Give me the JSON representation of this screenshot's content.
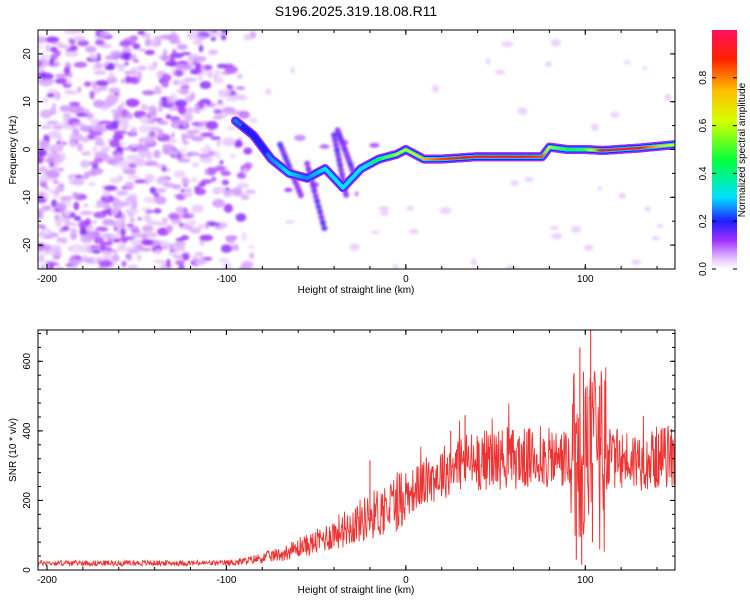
{
  "title": "S196.2025.319.18.08.R11",
  "chart_data": [
    {
      "type": "heatmap",
      "xlabel": "Height of straight line (km)",
      "ylabel": "Frequency (Hz)",
      "xlim": [
        -205,
        150
      ],
      "ylim": [
        -25,
        25
      ],
      "xticks": [
        -200,
        -100,
        0,
        100
      ],
      "xtick_labels": [
        "-200",
        "-100",
        "0",
        "100"
      ],
      "yticks": [
        -20,
        -10,
        0,
        10,
        20
      ],
      "ytick_labels": [
        "-20",
        "-10",
        "0",
        "10",
        "20"
      ],
      "colorbar": {
        "label": "Normalized spectral amplitude",
        "range": [
          0,
          1
        ],
        "ticks": [
          0,
          0.2,
          0.4,
          0.6,
          0.8
        ],
        "tick_labels": [
          "0.0",
          "0.2",
          "0.4",
          "0.6",
          "0.8"
        ]
      },
      "ridge": {
        "x": [
          -95,
          -85,
          -75,
          -65,
          -55,
          -45,
          -35,
          -25,
          -15,
          -5,
          0,
          5,
          10,
          20,
          40,
          60,
          76,
          80,
          90,
          100,
          110,
          130,
          150
        ],
        "y": [
          6,
          3,
          -2,
          -5,
          -6,
          -4,
          -8,
          -4,
          -2,
          -1,
          0,
          -1,
          -2,
          -2,
          -1.5,
          -1.5,
          -1.5,
          0.5,
          0,
          0,
          -0.2,
          0.3,
          1
        ],
        "amplitude": [
          0.25,
          0.2,
          0.25,
          0.3,
          0.25,
          0.3,
          0.3,
          0.35,
          0.45,
          0.6,
          0.6,
          0.65,
          0.75,
          0.85,
          0.9,
          0.9,
          0.85,
          0.6,
          0.45,
          0.5,
          0.95,
          0.9,
          0.6
        ]
      },
      "noise_region_x": [
        -205,
        -95
      ]
    },
    {
      "type": "line",
      "xlabel": "Height of straight line (km)",
      "ylabel": "SNR (10 * v/v)",
      "xlim": [
        -205,
        150
      ],
      "ylim": [
        0,
        690
      ],
      "xticks": [
        -200,
        -100,
        0,
        100
      ],
      "xtick_labels": [
        "-200",
        "-100",
        "0",
        "100"
      ],
      "yticks": [
        0,
        200,
        400,
        600
      ],
      "ytick_labels": [
        "0",
        "200",
        "400",
        "600"
      ],
      "envelope": {
        "x": [
          -205,
          -100,
          -90,
          -70,
          -50,
          -30,
          -10,
          10,
          30,
          50,
          80,
          90,
          100,
          110,
          130,
          150
        ],
        "y": [
          20,
          20,
          25,
          45,
          80,
          130,
          180,
          250,
          310,
          320,
          320,
          320,
          300,
          320,
          315,
          330
        ]
      },
      "spikes": [
        {
          "x": -20,
          "y": 315
        },
        {
          "x": 25,
          "y": 400
        },
        {
          "x": 33,
          "y": 445
        },
        {
          "x": 97,
          "y": 640
        },
        {
          "x": 99,
          "y": 570
        },
        {
          "x": 103,
          "y": 690
        },
        {
          "x": 108,
          "y": 530
        }
      ],
      "dips": [
        {
          "x": 95,
          "y": 30
        },
        {
          "x": 98,
          "y": 15
        },
        {
          "x": 104,
          "y": 80
        }
      ],
      "color": "#ee3333"
    }
  ]
}
